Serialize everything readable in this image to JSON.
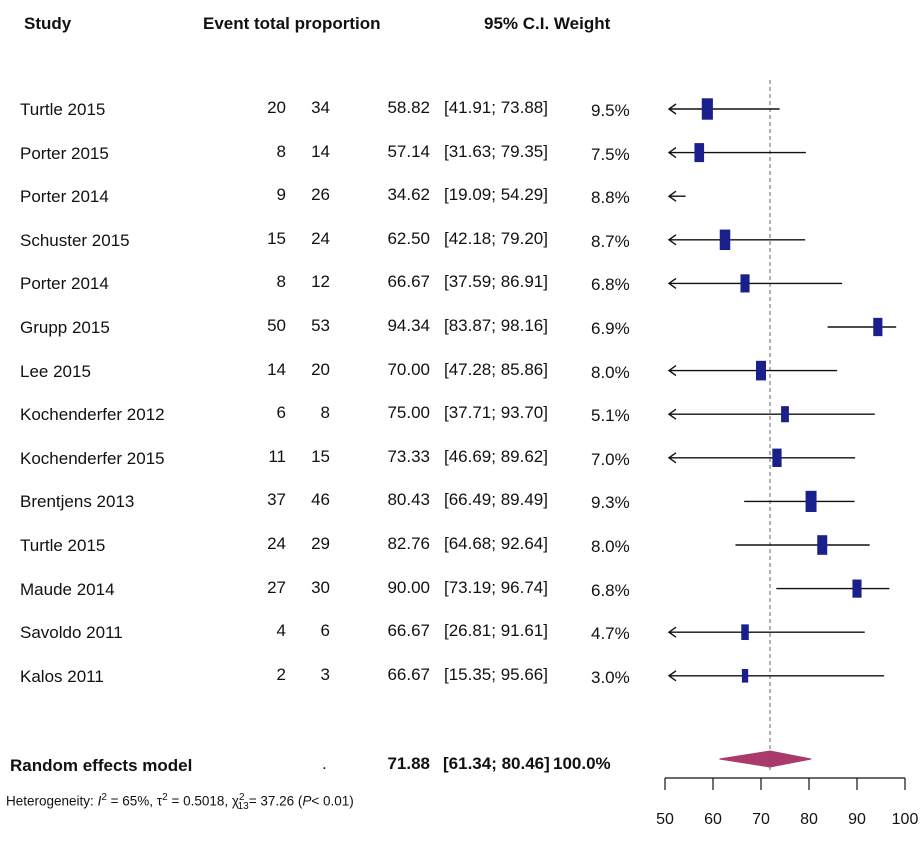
{
  "headers": {
    "study": "Study",
    "events_total_proportion": "Event total proportion",
    "ci_weight": "95% C.I. Weight"
  },
  "studies": [
    {
      "name": "Turtle 2015",
      "events": "20",
      "total": "34",
      "proportion": "58.82",
      "ci": "[41.91; 73.88]",
      "weight": "9.5%"
    },
    {
      "name": "Porter 2015",
      "events": "8",
      "total": "14",
      "proportion": "57.14",
      "ci": "[31.63; 79.35]",
      "weight": "7.5%"
    },
    {
      "name": "Porter 2014",
      "events": "9",
      "total": "26",
      "proportion": "34.62",
      "ci": "[19.09; 54.29]",
      "weight": "8.8%"
    },
    {
      "name": "Schuster 2015",
      "events": "15",
      "total": "24",
      "proportion": "62.50",
      "ci": "[42.18; 79.20]",
      "weight": "8.7%"
    },
    {
      "name": "Porter 2014",
      "events": "8",
      "total": "12",
      "proportion": "66.67",
      "ci": "[37.59; 86.91]",
      "weight": "6.8%"
    },
    {
      "name": "Grupp 2015",
      "events": "50",
      "total": "53",
      "proportion": "94.34",
      "ci": "[83.87; 98.16]",
      "weight": "6.9%"
    },
    {
      "name": "Lee 2015",
      "events": "14",
      "total": "20",
      "proportion": "70.00",
      "ci": "[47.28; 85.86]",
      "weight": "8.0%"
    },
    {
      "name": "Kochenderfer 2012",
      "events": "6",
      "total": "8",
      "proportion": "75.00",
      "ci": "[37.71; 93.70]",
      "weight": "5.1%"
    },
    {
      "name": "Kochenderfer 2015",
      "events": "11",
      "total": "15",
      "proportion": "73.33",
      "ci": "[46.69; 89.62]",
      "weight": "7.0%"
    },
    {
      "name": "Brentjens 2013",
      "events": "37",
      "total": "46",
      "proportion": "80.43",
      "ci": "[66.49; 89.49]",
      "weight": "9.3%"
    },
    {
      "name": "Turtle 2015",
      "events": "24",
      "total": "29",
      "proportion": "82.76",
      "ci": "[64.68; 92.64]",
      "weight": "8.0%"
    },
    {
      "name": "Maude 2014",
      "events": "27",
      "total": "30",
      "proportion": "90.00",
      "ci": "[73.19; 96.74]",
      "weight": "6.8%"
    },
    {
      "name": "Savoldo 2011",
      "events": "4",
      "total": "6",
      "proportion": "66.67",
      "ci": "[26.81; 91.61]",
      "weight": "4.7%"
    },
    {
      "name": "Kalos 2011",
      "events": "2",
      "total": "3",
      "proportion": "66.67",
      "ci": "[15.35; 95.66]",
      "weight": "3.0%"
    }
  ],
  "random_effects": {
    "label": "Random effects model",
    "events": ".",
    "proportion": "71.88",
    "ci": "[61.34; 80.46]",
    "weight": "100.0%"
  },
  "heterogeneity": {
    "prefix": "Heterogeneity: ",
    "i_symbol": "I",
    "i_sup": "2",
    "i_value": " = 65%, ",
    "tau_symbol": "τ",
    "tau_sup": "2",
    "tau_value": " = 0.5018, ",
    "chi_symbol": "χ",
    "chi_sup": "2",
    "chi_sub": "13",
    "chi_value": "= 37.26 (",
    "p_symbol": "P",
    "p_value": "< 0.01)"
  },
  "chart_data": {
    "type": "forest",
    "xlim": [
      50,
      100
    ],
    "ticks": [
      50,
      60,
      70,
      80,
      90,
      100
    ],
    "tick_labels": [
      "50",
      "60",
      "70",
      "80",
      "90",
      "100"
    ],
    "reference_line": 71.88,
    "marker_color": "#1a1f8c",
    "diamond_color": "#a83a6c",
    "points": [
      {
        "est": 58.82,
        "lo": 41.91,
        "hi": 73.88,
        "weight": 9.5
      },
      {
        "est": 57.14,
        "lo": 31.63,
        "hi": 79.35,
        "weight": 7.5
      },
      {
        "est": 34.62,
        "lo": 19.09,
        "hi": 54.29,
        "weight": 8.8
      },
      {
        "est": 62.5,
        "lo": 42.18,
        "hi": 79.2,
        "weight": 8.7
      },
      {
        "est": 66.67,
        "lo": 37.59,
        "hi": 86.91,
        "weight": 6.8
      },
      {
        "est": 94.34,
        "lo": 83.87,
        "hi": 98.16,
        "weight": 6.9
      },
      {
        "est": 70.0,
        "lo": 47.28,
        "hi": 85.86,
        "weight": 8.0
      },
      {
        "est": 75.0,
        "lo": 37.71,
        "hi": 93.7,
        "weight": 5.1
      },
      {
        "est": 73.33,
        "lo": 46.69,
        "hi": 89.62,
        "weight": 7.0
      },
      {
        "est": 80.43,
        "lo": 66.49,
        "hi": 89.49,
        "weight": 9.3
      },
      {
        "est": 82.76,
        "lo": 64.68,
        "hi": 92.64,
        "weight": 8.0
      },
      {
        "est": 90.0,
        "lo": 73.19,
        "hi": 96.74,
        "weight": 6.8
      },
      {
        "est": 66.67,
        "lo": 26.81,
        "hi": 91.61,
        "weight": 4.7
      },
      {
        "est": 66.67,
        "lo": 15.35,
        "hi": 95.66,
        "weight": 3.0
      }
    ],
    "summary": {
      "est": 71.88,
      "lo": 61.34,
      "hi": 80.46
    }
  }
}
